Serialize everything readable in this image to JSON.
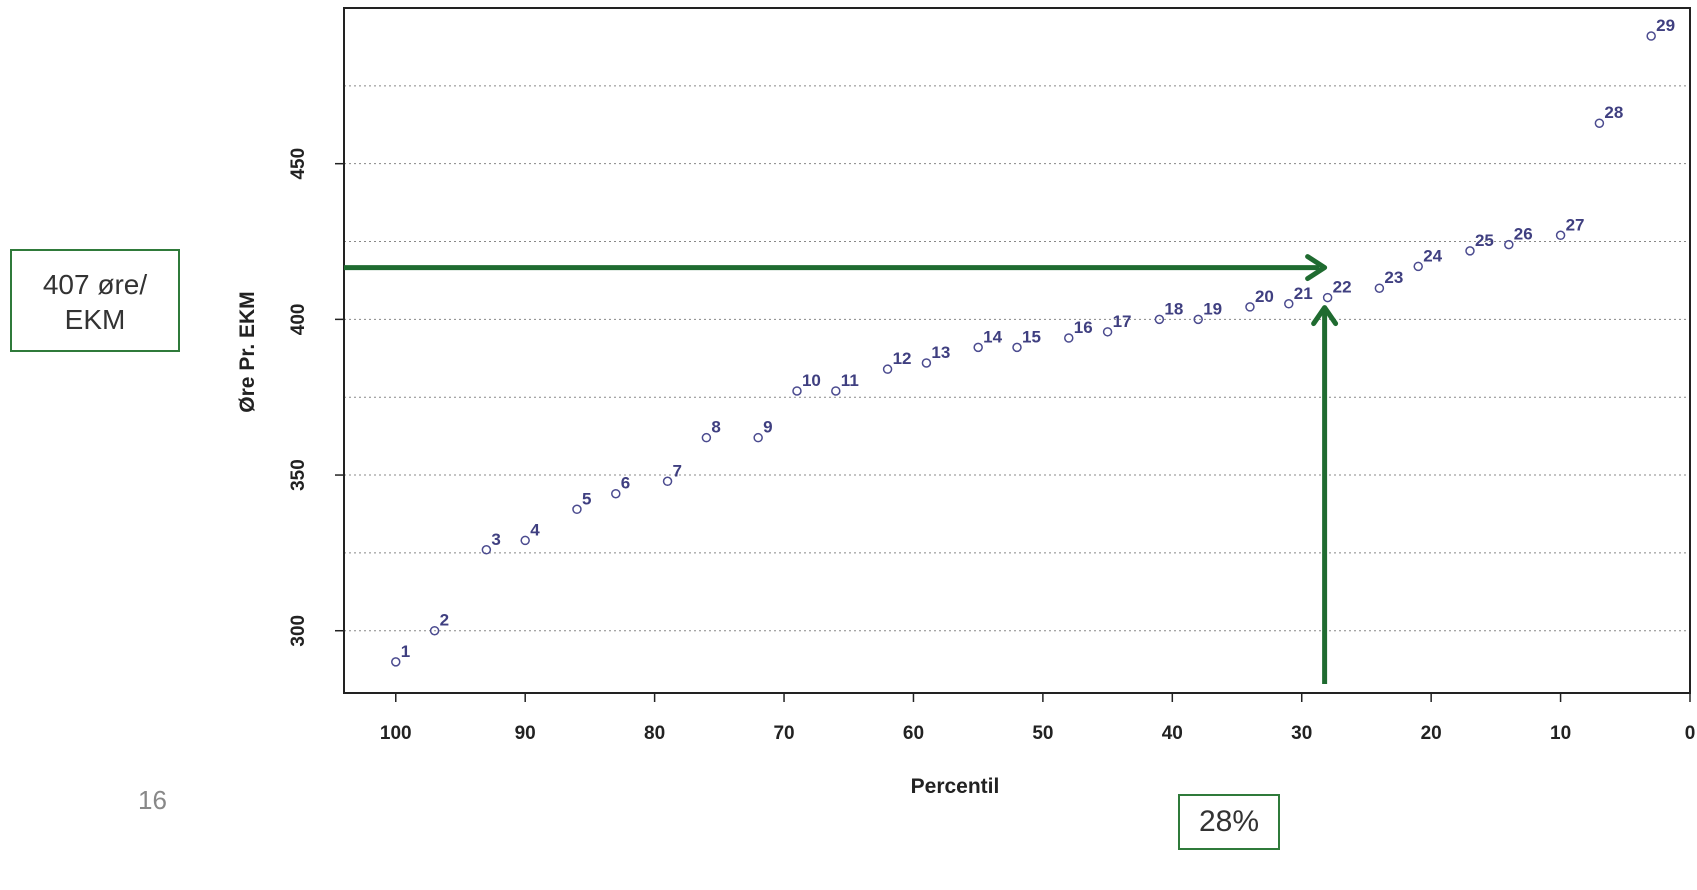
{
  "chart_data": {
    "type": "scatter",
    "xlabel": "Percentil",
    "ylabel": "Øre Pr. EKM",
    "xlim": [
      104,
      0
    ],
    "ylim": [
      280,
      500
    ],
    "x_reversed": true,
    "x_ticks": [
      100,
      90,
      80,
      70,
      60,
      50,
      40,
      30,
      20,
      10,
      0
    ],
    "y_ticks": [
      300,
      350,
      400,
      450
    ],
    "y_gridlines": [
      300,
      325,
      350,
      375,
      400,
      425,
      450,
      475
    ],
    "grid": "horizontal dotted",
    "points": [
      {
        "label": "1",
        "x": 100,
        "y": 290
      },
      {
        "label": "2",
        "x": 97,
        "y": 300
      },
      {
        "label": "3",
        "x": 93,
        "y": 326
      },
      {
        "label": "4",
        "x": 90,
        "y": 329
      },
      {
        "label": "5",
        "x": 86,
        "y": 339
      },
      {
        "label": "6",
        "x": 83,
        "y": 344
      },
      {
        "label": "7",
        "x": 79,
        "y": 348
      },
      {
        "label": "8",
        "x": 76,
        "y": 362
      },
      {
        "label": "9",
        "x": 72,
        "y": 362
      },
      {
        "label": "10",
        "x": 69,
        "y": 377
      },
      {
        "label": "11",
        "x": 66,
        "y": 377
      },
      {
        "label": "12",
        "x": 62,
        "y": 384
      },
      {
        "label": "13",
        "x": 59,
        "y": 386
      },
      {
        "label": "14",
        "x": 55,
        "y": 391
      },
      {
        "label": "15",
        "x": 52,
        "y": 391
      },
      {
        "label": "16",
        "x": 48,
        "y": 394
      },
      {
        "label": "17",
        "x": 45,
        "y": 396
      },
      {
        "label": "18",
        "x": 41,
        "y": 400
      },
      {
        "label": "19",
        "x": 38,
        "y": 400
      },
      {
        "label": "20",
        "x": 34,
        "y": 404
      },
      {
        "label": "21",
        "x": 31,
        "y": 405
      },
      {
        "label": "22",
        "x": 28,
        "y": 407
      },
      {
        "label": "23",
        "x": 24,
        "y": 410
      },
      {
        "label": "24",
        "x": 21,
        "y": 417
      },
      {
        "label": "25",
        "x": 17,
        "y": 422
      },
      {
        "label": "26",
        "x": 14,
        "y": 424
      },
      {
        "label": "27",
        "x": 10,
        "y": 427
      },
      {
        "label": "28",
        "x": 7,
        "y": 463
      },
      {
        "label": "29",
        "x": 3,
        "y": 491
      }
    ],
    "point_color": "#4b4b8f",
    "arrow_color": "#1f6b30",
    "highlight": {
      "x": 28,
      "y": 407
    }
  },
  "callouts": {
    "y_value": [
      "407 øre/",
      "EKM"
    ],
    "x_value": "28%"
  },
  "page_number": "16"
}
